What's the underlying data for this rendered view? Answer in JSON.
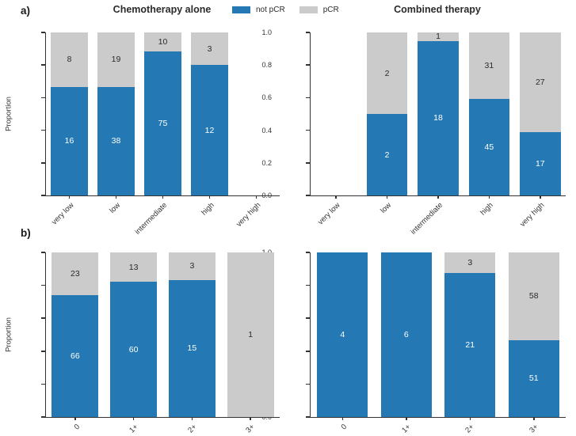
{
  "panel_a_label": "a)",
  "panel_b_label": "b)",
  "titles": {
    "left": "Chemotherapy alone",
    "right": "Combined therapy"
  },
  "legend": {
    "items": [
      {
        "label": "not pCR",
        "color": "#2478b4"
      },
      {
        "label": "pCR",
        "color": "#cbcbcb"
      }
    ]
  },
  "colors": {
    "not_pcr": "#2478b4",
    "pcr": "#cbcbcb",
    "axis": "#333333",
    "value_label_dark": "#2b2b2b",
    "value_label_light": "#ffffff"
  },
  "y_axis": {
    "label": "Proportion",
    "ticks": [
      "1.0",
      "0.8",
      "0.6",
      "0.4",
      "0.2",
      "0.0"
    ],
    "lim": [
      0,
      1
    ]
  },
  "chart_data": [
    {
      "id": "a-left",
      "type": "bar",
      "stacked": true,
      "panel": "a",
      "side": "left",
      "title": "Chemotherapy alone",
      "ylabel": "Proportion",
      "ylim": [
        0,
        1
      ],
      "categories": [
        "very low",
        "low",
        "intermediate",
        "high",
        "very high"
      ],
      "series": [
        {
          "name": "not pCR",
          "values": [
            16,
            38,
            75,
            12,
            null
          ]
        },
        {
          "name": "pCR",
          "values": [
            8,
            19,
            10,
            3,
            null
          ]
        }
      ],
      "not_pcr_proportions": [
        0.667,
        0.667,
        0.882,
        0.8,
        null
      ]
    },
    {
      "id": "a-right",
      "type": "bar",
      "stacked": true,
      "panel": "a",
      "side": "right",
      "title": "Combined therapy",
      "ylim": [
        0,
        1
      ],
      "categories": [
        "very low",
        "low",
        "intermediate",
        "high",
        "very high"
      ],
      "series": [
        {
          "name": "not pCR",
          "values": [
            null,
            2,
            18,
            45,
            17
          ]
        },
        {
          "name": "pCR",
          "values": [
            null,
            2,
            1,
            31,
            27
          ]
        }
      ],
      "not_pcr_proportions": [
        null,
        0.5,
        0.947,
        0.592,
        0.386
      ]
    },
    {
      "id": "b-left",
      "type": "bar",
      "stacked": true,
      "panel": "b",
      "side": "left",
      "ylabel": "Proportion",
      "ylim": [
        0,
        1
      ],
      "categories": [
        "0",
        "1+",
        "2+",
        "3+"
      ],
      "series": [
        {
          "name": "not pCR",
          "values": [
            66,
            60,
            15,
            null
          ]
        },
        {
          "name": "pCR",
          "values": [
            23,
            13,
            3,
            1
          ]
        }
      ],
      "not_pcr_proportions": [
        0.742,
        0.822,
        0.833,
        0.0
      ]
    },
    {
      "id": "b-right",
      "type": "bar",
      "stacked": true,
      "panel": "b",
      "side": "right",
      "ylim": [
        0,
        1
      ],
      "categories": [
        "0",
        "1+",
        "2+",
        "3+"
      ],
      "series": [
        {
          "name": "not pCR",
          "values": [
            4,
            6,
            21,
            51
          ]
        },
        {
          "name": "pCR",
          "values": [
            null,
            null,
            3,
            58
          ]
        }
      ],
      "not_pcr_proportions": [
        1.0,
        1.0,
        0.875,
        0.468
      ]
    }
  ]
}
